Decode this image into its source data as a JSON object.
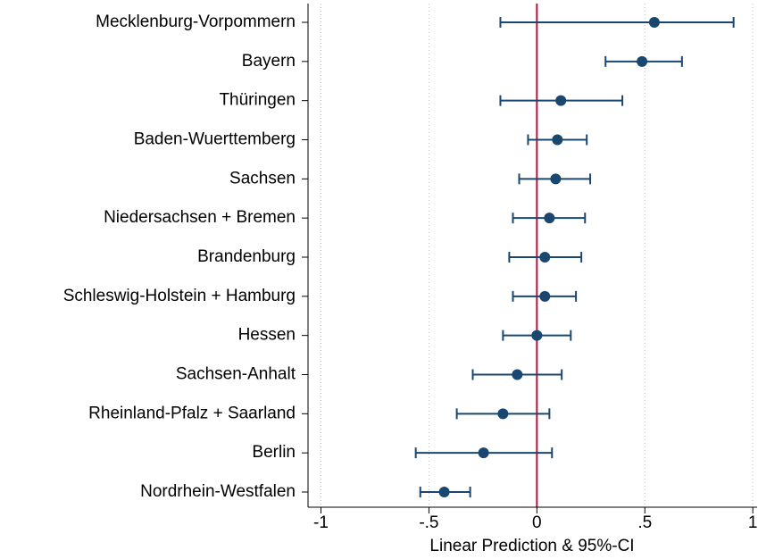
{
  "chart_data": {
    "type": "dot-ci",
    "x_label": "Linear Prediction & 95%-CI",
    "categories": [
      "Mecklenburg-Vorpommern",
      "Bayern",
      "Thüringen",
      "Baden-Wuerttemberg",
      "Sachsen",
      "Niedersachsen + Bremen",
      "Brandenburg",
      "Schleswig-Holstein + Hamburg",
      "Hessen",
      "Sachsen-Anhalt",
      "Rheinland-Pfalz + Saarland",
      "Berlin",
      "Nordrhein-Westfalen"
    ],
    "values": [
      0.544,
      0.487,
      0.111,
      0.095,
      0.087,
      0.058,
      0.037,
      0.037,
      0,
      -0.091,
      -0.157,
      -0.247,
      -0.429
    ],
    "lower": [
      -0.169,
      0.318,
      -0.169,
      -0.041,
      -0.082,
      -0.111,
      -0.128,
      -0.111,
      -0.157,
      -0.297,
      -0.371,
      -0.561,
      -0.54
    ],
    "upper": [
      0.911,
      0.672,
      0.396,
      0.231,
      0.247,
      0.223,
      0.206,
      0.181,
      0.157,
      0.115,
      0.058,
      0.07,
      -0.309
    ],
    "color": "#1a476f",
    "xlim": [
      -1.06,
      1.02
    ],
    "xticks": [
      -1,
      {
        "value": -0.5,
        "label": "-.5"
      },
      0,
      {
        "value": 0.5,
        "label": ".5"
      },
      1
    ],
    "grid": true,
    "reference_line": 0,
    "reference_color": "#b5123e"
  }
}
